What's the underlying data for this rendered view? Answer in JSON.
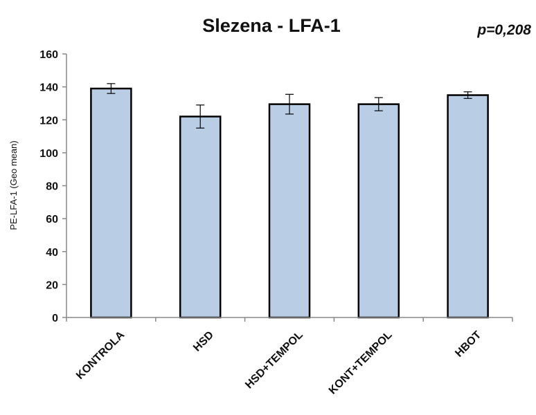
{
  "chart_data": {
    "type": "bar",
    "title": "Slezena - LFA-1",
    "annotation": "p=0,208",
    "ylabel": "PE-LFA-1 (Geo  mean)",
    "xlabel": "",
    "categories": [
      "KONTROLA",
      "HSD",
      "HSD+TEMPOL",
      "KONT+TEMPOL",
      "HBOT"
    ],
    "values": [
      139,
      122,
      129.5,
      129.5,
      135
    ],
    "errors": [
      3,
      7,
      6,
      4,
      2
    ],
    "ylim": [
      0,
      160
    ],
    "yticks": [
      "0",
      "20",
      "40",
      "60",
      "80",
      "100",
      "120",
      "140",
      "160"
    ],
    "grid": false,
    "legend": "none",
    "colors": {
      "bar_fill": "#b9cde5",
      "bar_stroke": "#000000",
      "axis": "#888888",
      "error_bar": "#000000"
    }
  }
}
